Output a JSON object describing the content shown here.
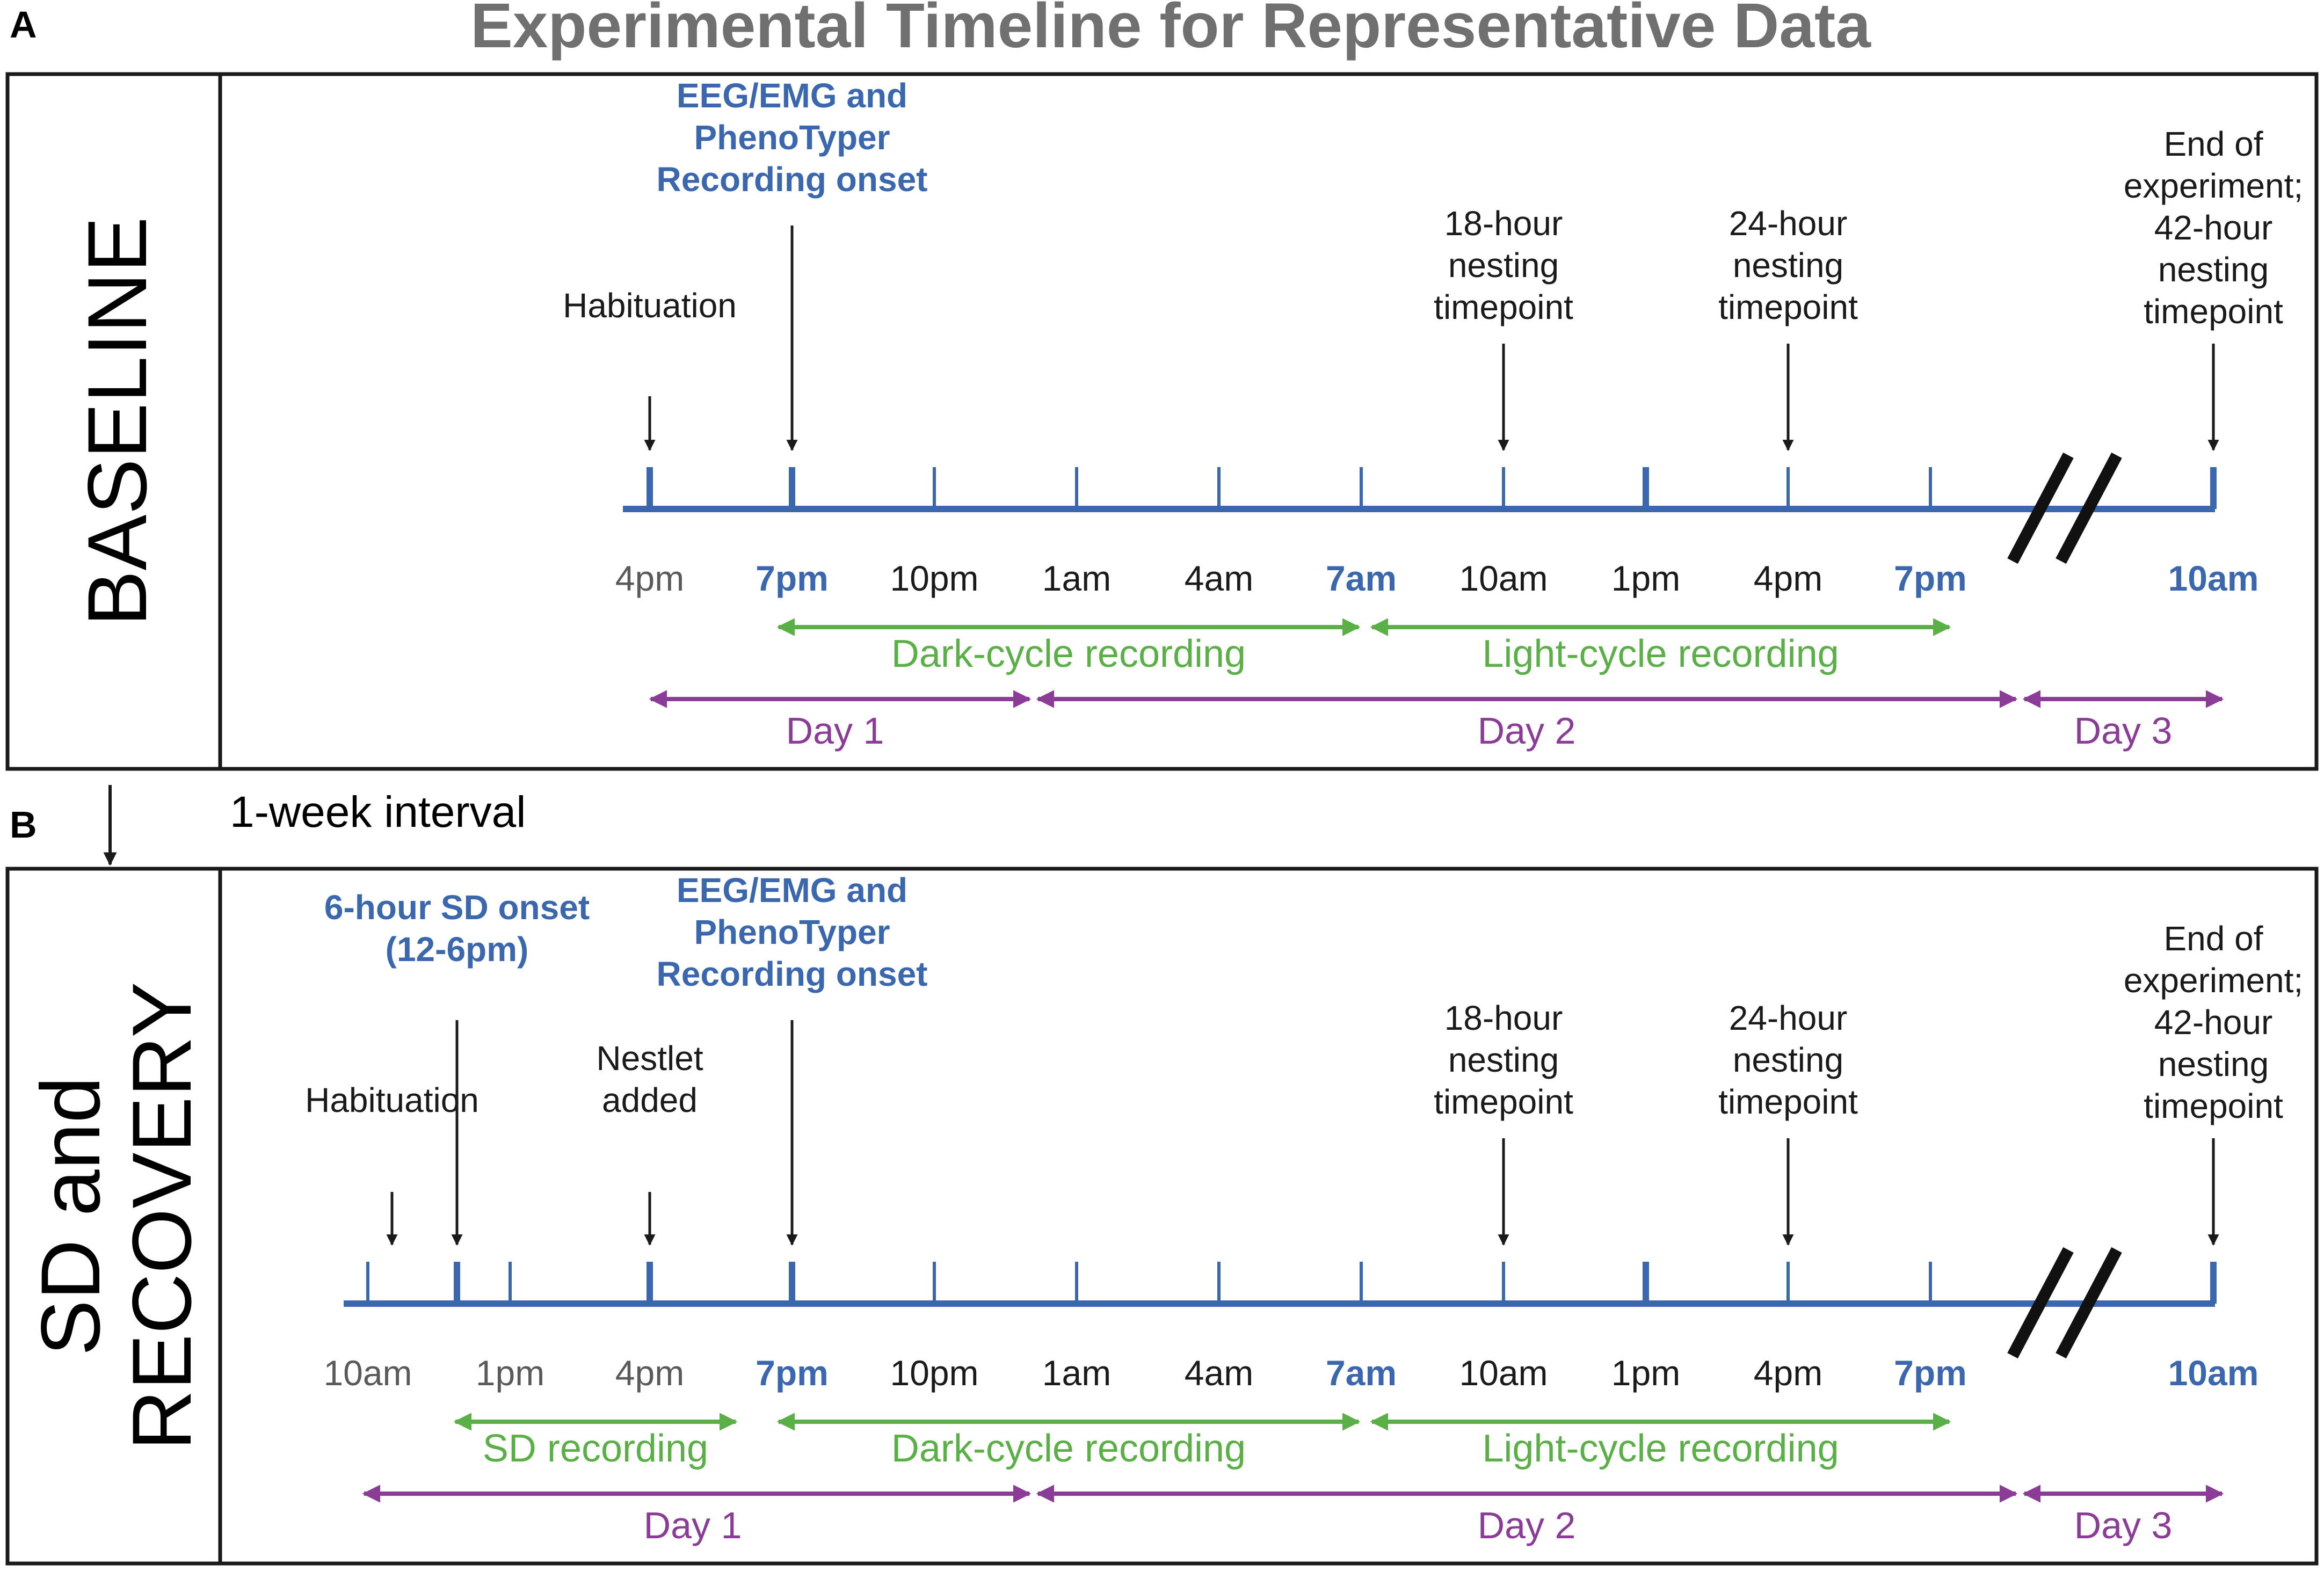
{
  "title": "Experimental Timeline for Representative Data",
  "colors": {
    "title": "#707070",
    "blue": "#3a67ad",
    "green": "#5aaf46",
    "purple": "#8b3c96",
    "black": "#1a1a1a",
    "gray_label": "#5a5a5a"
  },
  "interval_label": "1-week interval",
  "panels": [
    {
      "letter": "A",
      "side_lines": [
        "BASELINE"
      ],
      "time_labels": [
        {
          "text": "4pm",
          "bold": false,
          "muted": true
        },
        {
          "text": "7pm",
          "bold": true
        },
        {
          "text": "10pm",
          "bold": false
        },
        {
          "text": "1am",
          "bold": false
        },
        {
          "text": "4am",
          "bold": false
        },
        {
          "text": "7am",
          "bold": true
        },
        {
          "text": "10am",
          "bold": false
        },
        {
          "text": "1pm",
          "bold": false
        },
        {
          "text": "4pm",
          "bold": false
        },
        {
          "text": "7pm",
          "bold": true
        },
        {
          "text": "10am",
          "bold": true
        }
      ],
      "events": [
        {
          "lines": [
            "Habituation"
          ],
          "color": "black"
        },
        {
          "lines": [
            "EEG/EMG and",
            "PhenoTyper",
            "Recording onset"
          ],
          "color": "blue"
        },
        {
          "lines": [
            "18-hour",
            "nesting",
            "timepoint"
          ],
          "color": "black"
        },
        {
          "lines": [
            "24-hour",
            "nesting",
            "timepoint"
          ],
          "color": "black"
        },
        {
          "lines": [
            "End of",
            "experiment;",
            "42-hour",
            "nesting",
            "timepoint"
          ],
          "color": "black"
        }
      ],
      "green_spans": [
        "Dark-cycle recording",
        "Light-cycle recording"
      ],
      "purple_spans": [
        "Day 1",
        "Day 2",
        "Day 3"
      ]
    },
    {
      "letter": "B",
      "side_lines": [
        "SD and",
        "RECOVERY"
      ],
      "time_labels": [
        {
          "text": "10am",
          "bold": false,
          "muted": true
        },
        {
          "text": "1pm",
          "bold": false,
          "muted": true
        },
        {
          "text": "4pm",
          "bold": false,
          "muted": true
        },
        {
          "text": "7pm",
          "bold": true
        },
        {
          "text": "10pm",
          "bold": false
        },
        {
          "text": "1am",
          "bold": false
        },
        {
          "text": "4am",
          "bold": false
        },
        {
          "text": "7am",
          "bold": true
        },
        {
          "text": "10am",
          "bold": false
        },
        {
          "text": "1pm",
          "bold": false
        },
        {
          "text": "4pm",
          "bold": false
        },
        {
          "text": "7pm",
          "bold": true
        },
        {
          "text": "10am",
          "bold": true
        }
      ],
      "events": [
        {
          "lines": [
            "Habituation"
          ],
          "color": "black"
        },
        {
          "lines": [
            "6-hour SD onset",
            "(12-6pm)"
          ],
          "color": "blue"
        },
        {
          "lines": [
            "Nestlet",
            "added"
          ],
          "color": "black"
        },
        {
          "lines": [
            "EEG/EMG and",
            "PhenoTyper",
            "Recording onset"
          ],
          "color": "blue"
        },
        {
          "lines": [
            "18-hour",
            "nesting",
            "timepoint"
          ],
          "color": "black"
        },
        {
          "lines": [
            "24-hour",
            "nesting",
            "timepoint"
          ],
          "color": "black"
        },
        {
          "lines": [
            "End of",
            "experiment;",
            "42-hour",
            "nesting",
            "timepoint"
          ],
          "color": "black"
        }
      ],
      "green_spans": [
        "SD recording",
        "Dark-cycle recording",
        "Light-cycle recording"
      ],
      "purple_spans": [
        "Day 1",
        "Day 2",
        "Day 3"
      ]
    }
  ]
}
